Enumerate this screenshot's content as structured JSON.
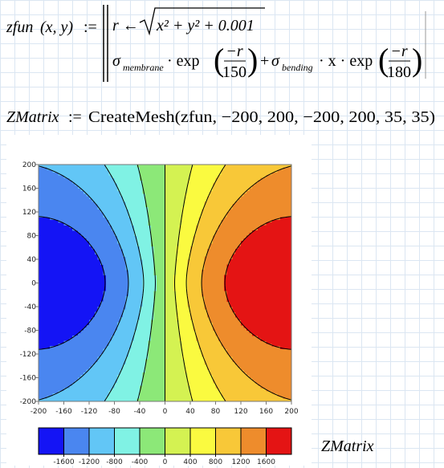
{
  "worksheet": {
    "func_name": "zfun",
    "func_params": "(x, y)",
    "assign": ":=",
    "line1_lhs": "r ←",
    "sqrt_content": "x² + y² + 0.001",
    "sigma_m": "σ",
    "sigma_m_sub": "membrane",
    "exp1": "· exp",
    "frac1_num": "−r",
    "frac1_den": "150",
    "plus": "+",
    "sigma_b": "σ",
    "sigma_b_sub": "bending",
    "exp2": "· x · exp",
    "frac2_num": "−r",
    "frac2_den": "180",
    "mesh_name": "ZMatrix",
    "mesh_assign": ":=",
    "mesh_call": "CreateMesh(zfun, −200, 200, −200, 200, 35, 35)"
  },
  "chart_data": {
    "type": "contour",
    "xlim": [
      -200,
      200
    ],
    "ylim": [
      -200,
      200
    ],
    "xticks": [
      -200,
      -160,
      -120,
      -80,
      -40,
      0,
      40,
      80,
      120,
      160,
      200
    ],
    "yticks": [
      -200,
      -160,
      -120,
      -80,
      -40,
      0,
      40,
      80,
      120,
      160,
      200
    ],
    "colorbar_ticks": [
      -1600,
      -1200,
      -800,
      -400,
      0,
      400,
      800,
      1200,
      1600
    ],
    "colors": [
      "#1414f5",
      "#4a86f0",
      "#62c6f6",
      "#80f2e4",
      "#8ce878",
      "#d4f252",
      "#fafa40",
      "#f8c838",
      "#ee8c2c",
      "#e41414"
    ],
    "colorbar_label": "ZMatrix"
  }
}
